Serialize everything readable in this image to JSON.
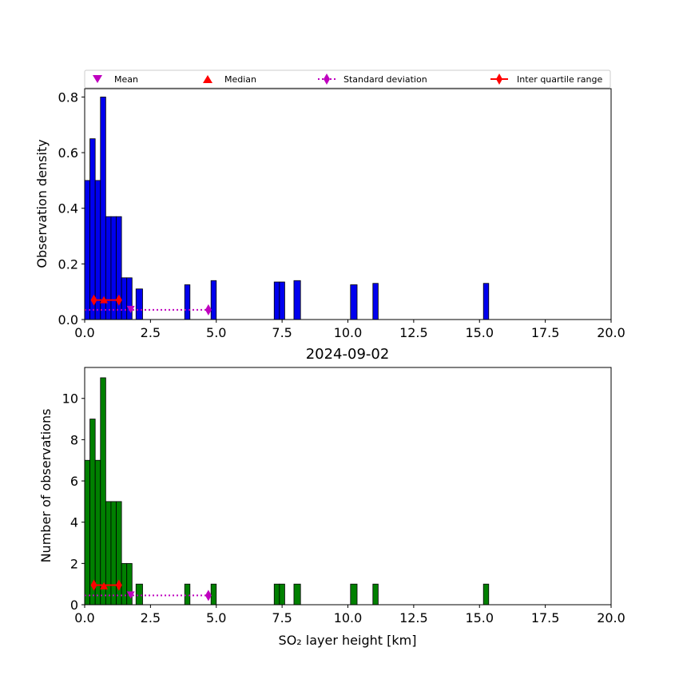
{
  "legend": {
    "placement": "above-top-panel",
    "entries": [
      {
        "label": "Mean",
        "marker": "triangle-down",
        "color": "#bf00bf",
        "line": "none"
      },
      {
        "label": "Median",
        "marker": "triangle-up",
        "color": "#ff0000",
        "line": "none"
      },
      {
        "label": "Standard deviation",
        "marker": "diamond",
        "color": "#bf00bf",
        "line": "dotted"
      },
      {
        "label": "Inter quartile range",
        "marker": "diamond",
        "color": "#ff0000",
        "line": "solid"
      }
    ]
  },
  "chart_data": [
    {
      "type": "bar",
      "panel": "top",
      "title": "",
      "xlabel": "",
      "ylabel": "Observation density",
      "xlim": [
        0,
        20
      ],
      "ylim": [
        0,
        0.83
      ],
      "xticks": [
        "0.0",
        "2.5",
        "5.0",
        "7.5",
        "10.0",
        "12.5",
        "15.0",
        "17.5",
        "20.0"
      ],
      "yticks": [
        "0.0",
        "0.2",
        "0.4",
        "0.6",
        "0.8"
      ],
      "grid": false,
      "bar_color": "#0000ee",
      "bins": [
        {
          "x0": 0.0,
          "x1": 0.2,
          "value": 0.5
        },
        {
          "x0": 0.2,
          "x1": 0.4,
          "value": 0.65
        },
        {
          "x0": 0.4,
          "x1": 0.6,
          "value": 0.5
        },
        {
          "x0": 0.6,
          "x1": 0.8,
          "value": 0.8
        },
        {
          "x0": 0.8,
          "x1": 1.0,
          "value": 0.37
        },
        {
          "x0": 1.0,
          "x1": 1.2,
          "value": 0.37
        },
        {
          "x0": 1.2,
          "x1": 1.4,
          "value": 0.37
        },
        {
          "x0": 1.4,
          "x1": 1.6,
          "value": 0.15
        },
        {
          "x0": 1.6,
          "x1": 1.8,
          "value": 0.15
        },
        {
          "x0": 1.95,
          "x1": 2.2,
          "value": 0.11
        },
        {
          "x0": 3.8,
          "x1": 4.0,
          "value": 0.125
        },
        {
          "x0": 4.8,
          "x1": 5.0,
          "value": 0.14
        },
        {
          "x0": 7.2,
          "x1": 7.4,
          "value": 0.135
        },
        {
          "x0": 7.4,
          "x1": 7.6,
          "value": 0.135
        },
        {
          "x0": 7.95,
          "x1": 8.2,
          "value": 0.14
        },
        {
          "x0": 10.1,
          "x1": 10.35,
          "value": 0.125
        },
        {
          "x0": 10.95,
          "x1": 11.15,
          "value": 0.13
        },
        {
          "x0": 15.15,
          "x1": 15.35,
          "value": 0.13
        }
      ],
      "stats": {
        "y": 0.035,
        "iqr_y": 0.07,
        "median_y": 0.07,
        "mean": 1.75,
        "median": 0.73,
        "std_range": [
          0.0,
          4.7
        ],
        "iqr_range": [
          0.35,
          1.3
        ]
      }
    },
    {
      "type": "bar",
      "panel": "bottom",
      "title": "2024-09-02",
      "xlabel": "SO₂ layer height [km]",
      "ylabel": "Number of observations",
      "xlim": [
        0,
        20
      ],
      "ylim": [
        0,
        11.5
      ],
      "xticks": [
        "0.0",
        "2.5",
        "5.0",
        "7.5",
        "10.0",
        "12.5",
        "15.0",
        "17.5",
        "20.0"
      ],
      "yticks": [
        "0",
        "2",
        "4",
        "6",
        "8",
        "10"
      ],
      "grid": false,
      "bar_color": "#008000",
      "bins": [
        {
          "x0": 0.0,
          "x1": 0.2,
          "value": 7
        },
        {
          "x0": 0.2,
          "x1": 0.4,
          "value": 9
        },
        {
          "x0": 0.4,
          "x1": 0.6,
          "value": 7
        },
        {
          "x0": 0.6,
          "x1": 0.8,
          "value": 11
        },
        {
          "x0": 0.8,
          "x1": 1.0,
          "value": 5
        },
        {
          "x0": 1.0,
          "x1": 1.2,
          "value": 5
        },
        {
          "x0": 1.2,
          "x1": 1.4,
          "value": 5
        },
        {
          "x0": 1.4,
          "x1": 1.6,
          "value": 2
        },
        {
          "x0": 1.6,
          "x1": 1.8,
          "value": 2
        },
        {
          "x0": 1.95,
          "x1": 2.2,
          "value": 1
        },
        {
          "x0": 3.8,
          "x1": 4.0,
          "value": 1
        },
        {
          "x0": 4.8,
          "x1": 5.0,
          "value": 1
        },
        {
          "x0": 7.2,
          "x1": 7.4,
          "value": 1
        },
        {
          "x0": 7.4,
          "x1": 7.6,
          "value": 1
        },
        {
          "x0": 7.95,
          "x1": 8.2,
          "value": 1
        },
        {
          "x0": 10.1,
          "x1": 10.35,
          "value": 1
        },
        {
          "x0": 10.95,
          "x1": 11.15,
          "value": 1
        },
        {
          "x0": 15.15,
          "x1": 15.35,
          "value": 1
        }
      ],
      "stats": {
        "y": 0.45,
        "iqr_y": 0.95,
        "median_y": 0.9,
        "mean": 1.75,
        "median": 0.73,
        "std_range": [
          0.0,
          4.7
        ],
        "iqr_range": [
          0.35,
          1.3
        ]
      }
    }
  ]
}
